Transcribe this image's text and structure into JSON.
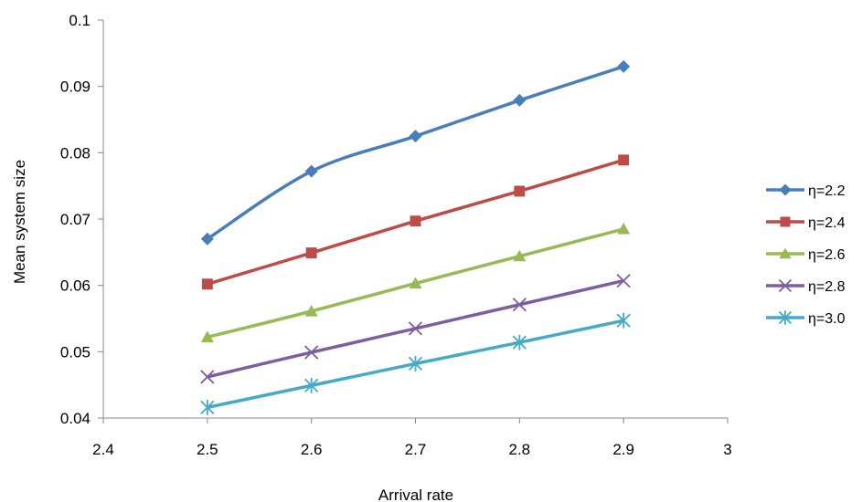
{
  "chart_data": {
    "type": "line",
    "title": "",
    "xlabel": "Arrival rate",
    "ylabel": "Mean system size",
    "xlim": [
      2.4,
      3
    ],
    "ylim": [
      0.04,
      0.1
    ],
    "x_ticks": [
      "2.4",
      "2.5",
      "2.6",
      "2.7",
      "2.8",
      "2.9",
      "3"
    ],
    "y_ticks": [
      "0.04",
      "0.05",
      "0.06",
      "0.07",
      "0.08",
      "0.09",
      "0.1"
    ],
    "grid": false,
    "legend_position": "right",
    "x": [
      2.5,
      2.6,
      2.7,
      2.8,
      2.9
    ],
    "series": [
      {
        "name": "η=2.2",
        "color": "#4a7ebb",
        "marker": "diamond",
        "values": [
          0.067,
          0.0772,
          0.0825,
          0.0879,
          0.093
        ]
      },
      {
        "name": "η=2.4",
        "color": "#be4b48",
        "marker": "square",
        "values": [
          0.0602,
          0.0649,
          0.0697,
          0.0742,
          0.0789
        ]
      },
      {
        "name": "η=2.6",
        "color": "#98b954",
        "marker": "triangle",
        "values": [
          0.0522,
          0.0561,
          0.0603,
          0.0644,
          0.0685
        ]
      },
      {
        "name": "η=2.8",
        "color": "#7d5fa0",
        "marker": "x",
        "values": [
          0.0462,
          0.0499,
          0.0535,
          0.0571,
          0.0607
        ]
      },
      {
        "name": "η=3.0",
        "color": "#46aac5",
        "marker": "star",
        "values": [
          0.0416,
          0.0449,
          0.0482,
          0.0514,
          0.0547
        ]
      }
    ]
  }
}
